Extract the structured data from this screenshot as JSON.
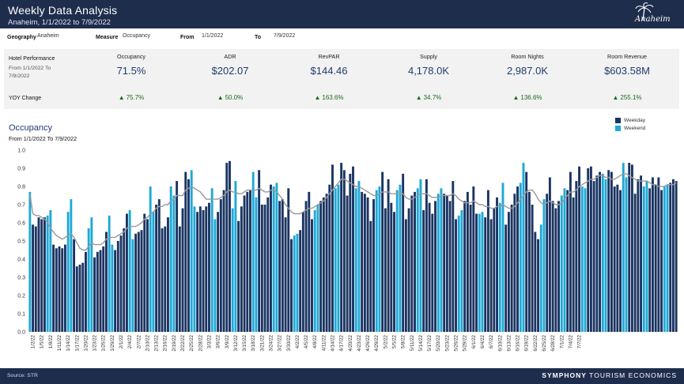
{
  "header": {
    "title": "Weekly Data Analysis",
    "subtitle": "Anaheim, 1/1/2022 to 7/9/2022",
    "logo_text": "Anaheim"
  },
  "filters": {
    "geography_label": "Geography",
    "geography_value": "Anaheim",
    "measure_label": "Measure",
    "measure_value": "Occupancy",
    "from_label": "From",
    "from_value": "1/1/2022",
    "to_label": "To",
    "to_value": "7/9/2022"
  },
  "kpi": {
    "row_label": "Hotel Performance",
    "row_sub": "From 1/1/2022 To 7/9/2022",
    "yoy_label": "YOY Change",
    "metrics": [
      {
        "name": "Occupancy",
        "value": "71.5%",
        "yoy": "75.7%"
      },
      {
        "name": "ADR",
        "value": "$202.07",
        "yoy": "50.0%"
      },
      {
        "name": "RevPAR",
        "value": "$144.46",
        "yoy": "163.6%"
      },
      {
        "name": "Supply",
        "value": "4,178.0K",
        "yoy": "34.7%"
      },
      {
        "name": "Room Nights",
        "value": "2,987.0K",
        "yoy": "136.6%"
      },
      {
        "name": "Room Revenue",
        "value": "$603.58M",
        "yoy": "255.1%"
      }
    ]
  },
  "chart": {
    "title": "Occupancy",
    "subtitle": "From 1/1/2022  To 7/9/2022"
  },
  "colors": {
    "weekday": "#1b3462",
    "weekend": "#1ea9d6",
    "trend": "#9a9a9a",
    "header": "#1f2d4d",
    "positive": "#1a6b1a"
  },
  "chart_data": {
    "type": "bar",
    "title": "Occupancy",
    "subtitle": "From 1/1/2022  To 7/9/2022",
    "ylim": [
      0,
      1.0
    ],
    "yticks": [
      0.0,
      0.1,
      0.2,
      0.3,
      0.4,
      0.5,
      0.6,
      0.7,
      0.8,
      0.9,
      1.0
    ],
    "legend": [
      "Weekday",
      "Weekend"
    ],
    "legend_position": "top-right",
    "start_date": "1/1/2022",
    "end_date": "7/9/2022",
    "xtick_labels": [
      "1/2/22",
      "1/5/22",
      "1/8/22",
      "1/11/22",
      "1/14/22",
      "1/17/22",
      "1/20/22",
      "1/23/22",
      "1/26/22",
      "1/29/22",
      "2/1/22",
      "2/4/22",
      "2/7/22",
      "2/10/22",
      "2/13/22",
      "2/16/22",
      "2/19/22",
      "2/22/22",
      "2/25/22",
      "2/28/22",
      "3/3/22",
      "3/6/22",
      "3/9/22",
      "3/12/22",
      "3/15/22",
      "3/18/22",
      "3/21/22",
      "3/24/22",
      "3/27/22",
      "3/30/22",
      "4/2/22",
      "4/5/22",
      "4/8/22",
      "4/11/22",
      "4/14/22",
      "4/17/22",
      "4/20/22",
      "4/23/22",
      "4/26/22",
      "4/29/22",
      "5/2/22",
      "5/5/22",
      "5/8/22",
      "5/11/22",
      "5/14/22",
      "5/17/22",
      "5/20/22",
      "5/23/22",
      "5/26/22",
      "5/29/22",
      "6/1/22",
      "6/4/22",
      "6/7/22",
      "6/10/22",
      "6/13/22",
      "6/16/22",
      "6/19/22",
      "6/22/22",
      "6/25/22",
      "6/28/22",
      "7/1/22",
      "7/4/22",
      "7/7/22"
    ],
    "series": [
      {
        "name": "Occupancy",
        "values": [
          0.77,
          0.59,
          0.58,
          0.63,
          0.62,
          0.63,
          0.64,
          0.67,
          0.48,
          0.46,
          0.47,
          0.46,
          0.48,
          0.66,
          0.73,
          0.51,
          0.36,
          0.37,
          0.38,
          0.44,
          0.57,
          0.63,
          0.41,
          0.44,
          0.45,
          0.47,
          0.55,
          0.64,
          0.48,
          0.45,
          0.5,
          0.53,
          0.57,
          0.65,
          0.67,
          0.51,
          0.54,
          0.55,
          0.56,
          0.65,
          0.62,
          0.8,
          0.66,
          0.7,
          0.73,
          0.57,
          0.58,
          0.63,
          0.8,
          0.75,
          0.83,
          0.58,
          0.68,
          0.88,
          0.84,
          0.89,
          0.69,
          0.66,
          0.69,
          0.67,
          0.69,
          0.71,
          0.79,
          0.62,
          0.66,
          0.73,
          0.78,
          0.93,
          0.94,
          0.68,
          0.83,
          0.61,
          0.69,
          0.75,
          0.77,
          0.78,
          0.88,
          0.74,
          0.89,
          0.7,
          0.7,
          0.74,
          0.81,
          0.8,
          0.82,
          0.72,
          0.73,
          0.63,
          0.79,
          0.51,
          0.53,
          0.54,
          0.56,
          0.66,
          0.72,
          0.77,
          0.62,
          0.67,
          0.7,
          0.72,
          0.74,
          0.76,
          0.81,
          0.92,
          0.79,
          0.81,
          0.93,
          0.89,
          0.75,
          0.87,
          0.91,
          0.79,
          0.83,
          0.77,
          0.76,
          0.74,
          0.61,
          0.73,
          0.78,
          0.8,
          0.88,
          0.68,
          0.84,
          0.71,
          0.66,
          0.78,
          0.81,
          0.87,
          0.62,
          0.68,
          0.75,
          0.77,
          0.79,
          0.84,
          0.67,
          0.84,
          0.71,
          0.65,
          0.72,
          0.76,
          0.79,
          0.76,
          0.75,
          0.72,
          0.83,
          0.62,
          0.64,
          0.67,
          0.72,
          0.77,
          0.7,
          0.8,
          0.65,
          0.65,
          0.66,
          0.63,
          0.78,
          0.62,
          0.68,
          0.74,
          0.71,
          0.82,
          0.59,
          0.66,
          0.7,
          0.76,
          0.8,
          0.82,
          0.93,
          0.88,
          0.77,
          0.7,
          0.55,
          0.51,
          0.59,
          0.73,
          0.76,
          0.85,
          0.72,
          0.68,
          0.72,
          0.75,
          0.79,
          0.78,
          0.88,
          0.74,
          0.83,
          0.91,
          0.8,
          0.79,
          0.9,
          0.91,
          0.83,
          0.86,
          0.88,
          0.87,
          0.84,
          0.89,
          0.88,
          0.8,
          0.81,
          0.78,
          0.93,
          0.85,
          0.93,
          0.92,
          0.76,
          0.84,
          0.86,
          0.8,
          0.83,
          0.79,
          0.85,
          0.81,
          0.85,
          0.78,
          0.8,
          0.81,
          0.82,
          0.84,
          0.83
        ]
      },
      {
        "name": "Trend",
        "values": [
          0.76,
          0.65,
          0.64,
          0.64,
          0.63,
          0.62,
          0.6,
          0.57,
          0.55,
          0.53,
          0.52,
          0.51,
          0.52,
          0.53,
          0.54,
          0.52,
          0.49,
          0.46,
          0.45,
          0.45,
          0.47,
          0.49,
          0.48,
          0.48,
          0.48,
          0.49,
          0.51,
          0.52,
          0.52,
          0.52,
          0.53,
          0.54,
          0.55,
          0.57,
          0.58,
          0.58,
          0.58,
          0.59,
          0.6,
          0.62,
          0.63,
          0.65,
          0.66,
          0.68,
          0.69,
          0.69,
          0.7,
          0.7,
          0.72,
          0.73,
          0.75,
          0.75,
          0.75,
          0.78,
          0.79,
          0.8,
          0.79,
          0.78,
          0.77,
          0.75,
          0.73,
          0.73,
          0.73,
          0.73,
          0.73,
          0.74,
          0.75,
          0.77,
          0.78,
          0.77,
          0.77,
          0.76,
          0.76,
          0.77,
          0.78,
          0.78,
          0.78,
          0.78,
          0.79,
          0.78,
          0.77,
          0.77,
          0.78,
          0.78,
          0.77,
          0.75,
          0.73,
          0.7,
          0.68,
          0.66,
          0.65,
          0.65,
          0.65,
          0.66,
          0.67,
          0.68,
          0.68,
          0.69,
          0.7,
          0.71,
          0.72,
          0.74,
          0.76,
          0.78,
          0.8,
          0.82,
          0.84,
          0.84,
          0.83,
          0.82,
          0.81,
          0.8,
          0.8,
          0.79,
          0.78,
          0.77,
          0.76,
          0.75,
          0.75,
          0.76,
          0.77,
          0.77,
          0.77,
          0.76,
          0.76,
          0.76,
          0.76,
          0.76,
          0.74,
          0.73,
          0.73,
          0.74,
          0.75,
          0.76,
          0.76,
          0.76,
          0.75,
          0.74,
          0.74,
          0.74,
          0.75,
          0.75,
          0.75,
          0.75,
          0.76,
          0.75,
          0.73,
          0.72,
          0.71,
          0.71,
          0.71,
          0.72,
          0.71,
          0.7,
          0.7,
          0.69,
          0.69,
          0.68,
          0.68,
          0.69,
          0.69,
          0.7,
          0.69,
          0.68,
          0.68,
          0.69,
          0.71,
          0.73,
          0.75,
          0.77,
          0.78,
          0.78,
          0.76,
          0.73,
          0.71,
          0.7,
          0.71,
          0.72,
          0.71,
          0.7,
          0.7,
          0.71,
          0.73,
          0.75,
          0.77,
          0.77,
          0.78,
          0.8,
          0.81,
          0.82,
          0.83,
          0.84,
          0.84,
          0.85,
          0.86,
          0.86,
          0.85,
          0.85,
          0.84,
          0.84,
          0.85,
          0.86,
          0.87,
          0.87,
          0.86,
          0.85,
          0.84,
          0.83,
          0.83,
          0.83,
          0.83,
          0.82,
          0.81,
          0.81,
          0.8,
          0.8,
          0.8,
          0.81,
          0.81,
          0.81,
          0.82
        ]
      }
    ]
  },
  "footer": {
    "source": "Source: STR",
    "brand_bold": "SYMPHONY",
    "brand_light": "TOURISM ECONOMICS"
  }
}
